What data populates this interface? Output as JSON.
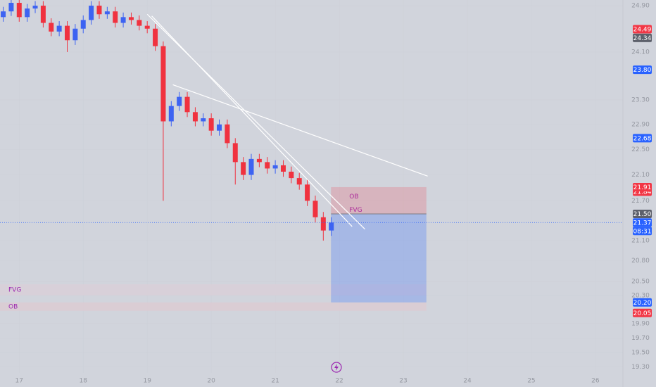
{
  "chart_data": {
    "type": "candlestick",
    "x": [
      16.75,
      16.875,
      17,
      17.125,
      17.25,
      17.375,
      17.5,
      17.625,
      17.75,
      17.875,
      18,
      18.125,
      18.25,
      18.375,
      18.5,
      18.625,
      18.75,
      18.875,
      19,
      19.125,
      19.25,
      19.375,
      19.5,
      19.625,
      19.75,
      19.875,
      20,
      20.125,
      20.25,
      20.375,
      20.5,
      20.625,
      20.75,
      20.875,
      21,
      21.125,
      21.25,
      21.375,
      21.5,
      21.625,
      21.75,
      21.875
    ],
    "open": [
      24.7,
      24.8,
      24.95,
      24.7,
      24.85,
      24.9,
      24.6,
      24.45,
      24.55,
      24.3,
      24.5,
      24.65,
      24.9,
      24.75,
      24.8,
      24.6,
      24.7,
      24.65,
      24.55,
      24.5,
      24.2,
      22.95,
      23.2,
      23.35,
      23.1,
      22.95,
      23,
      22.8,
      22.9,
      22.6,
      22.3,
      22.1,
      22.35,
      22.3,
      22.2,
      22.25,
      22.15,
      22.05,
      21.95,
      21.7,
      21.45,
      21.25
    ],
    "high": [
      24.88,
      25.03,
      25.03,
      24.93,
      24.98,
      24.98,
      24.68,
      24.63,
      24.63,
      24.58,
      24.73,
      24.98,
      24.98,
      24.88,
      24.88,
      24.78,
      24.78,
      24.73,
      24.63,
      24.58,
      24.28,
      23.28,
      23.43,
      23.43,
      23.18,
      23.08,
      23.08,
      22.98,
      22.98,
      22.68,
      22.38,
      22.43,
      22.43,
      22.38,
      22.33,
      22.33,
      22.23,
      22.13,
      22.03,
      21.78,
      21.53,
      21.45
    ],
    "low": [
      24.62,
      24.72,
      24.62,
      24.62,
      24.77,
      24.52,
      24.37,
      24.37,
      24.1,
      24.22,
      24.42,
      24.57,
      24.67,
      24.67,
      24.52,
      24.52,
      24.57,
      24.47,
      24.42,
      24.12,
      21.7,
      22.87,
      23.12,
      23.02,
      22.87,
      22.87,
      22.72,
      22.72,
      22.52,
      21.95,
      22.02,
      22.02,
      22.22,
      22.12,
      22.12,
      22.07,
      21.97,
      21.87,
      21.62,
      21.37,
      21.1,
      21.17
    ],
    "close": [
      24.8,
      24.95,
      24.7,
      24.85,
      24.9,
      24.6,
      24.45,
      24.55,
      24.3,
      24.5,
      24.65,
      24.9,
      24.75,
      24.8,
      24.6,
      24.7,
      24.65,
      24.55,
      24.5,
      24.2,
      22.95,
      23.2,
      23.35,
      23.1,
      22.95,
      23,
      22.8,
      22.9,
      22.6,
      22.3,
      22.1,
      22.35,
      22.3,
      22.2,
      22.25,
      22.15,
      22.05,
      21.95,
      21.7,
      21.45,
      21.25,
      21.37
    ],
    "up_color": "#3d63f2",
    "down_color": "#f0323f",
    "xlim": [
      16.7,
      26.43
    ],
    "xticks": [
      17,
      18,
      19,
      20,
      21,
      22,
      23,
      24,
      25,
      26
    ],
    "ylim": [
      19.22,
      25.0
    ],
    "log_scale": true,
    "yticks": [
      {
        "value": 24.9,
        "label": "24.90"
      },
      {
        "value": 24.1,
        "label": "24.10"
      },
      {
        "value": 23.3,
        "label": "23.30"
      },
      {
        "value": 22.9,
        "label": "22.90"
      },
      {
        "value": 22.5,
        "label": "22.50"
      },
      {
        "value": 22.1,
        "label": "22.10"
      },
      {
        "value": 21.7,
        "label": "21.70"
      },
      {
        "value": 21.1,
        "label": "21.10"
      },
      {
        "value": 20.8,
        "label": "20.80"
      },
      {
        "value": 20.5,
        "label": "20.50"
      },
      {
        "value": 20.3,
        "label": "20.30"
      },
      {
        "value": 19.9,
        "label": "19.90"
      },
      {
        "value": 19.7,
        "label": "19.70"
      },
      {
        "value": 19.5,
        "label": "19.50"
      },
      {
        "value": 19.3,
        "label": "19.30"
      }
    ],
    "price_badges": [
      {
        "value": 24.49,
        "color": "#f23645"
      },
      {
        "value": 24.34,
        "color": "#5d606b"
      },
      {
        "value": 23.8,
        "label": "23.80",
        "color": "#2962ff"
      },
      {
        "value": 22.68,
        "color": "#2962ff"
      },
      {
        "value": 21.84,
        "color": "#f23645"
      },
      {
        "value": 21.91,
        "color": "#f23645"
      },
      {
        "value": 21.5,
        "label": "21.50",
        "color": "#5d606b"
      },
      {
        "value": 21.37,
        "color": "#2962ff"
      },
      {
        "value": 20.2,
        "label": "20.20",
        "color": "#2962ff"
      },
      {
        "value": 20.05,
        "color": "#f23645"
      }
    ],
    "countdown": "08:31",
    "position": {
      "entry": 21.5,
      "stop": 21.91,
      "target": 20.2,
      "x0": 21.87,
      "x1": 23.36
    },
    "zones": [
      {
        "label": "FVG",
        "top": 20.46,
        "bottom": 20.3,
        "x0": 16.7,
        "x1": 23.36,
        "color": "#d9cfd8"
      },
      {
        "label": "OB",
        "top": 20.2,
        "bottom": 20.08,
        "x0": 16.7,
        "x1": 23.36,
        "color": "#dccbd2"
      },
      {
        "label": "OB",
        "top": 21.91,
        "bottom": 21.62,
        "x0": 21.87,
        "x1": 23.36
      },
      {
        "label": "FVG",
        "top": 21.62,
        "bottom": 21.5,
        "x0": 21.87,
        "x1": 23.36
      }
    ],
    "trendlines": [
      {
        "x": [
          19.0,
          22.4
        ],
        "y": [
          24.75,
          21.27
        ]
      },
      {
        "x": [
          19.07,
          22.2
        ],
        "y": [
          24.72,
          21.31
        ]
      },
      {
        "x": [
          19.4,
          23.38
        ],
        "y": [
          23.55,
          22.08
        ]
      }
    ]
  }
}
